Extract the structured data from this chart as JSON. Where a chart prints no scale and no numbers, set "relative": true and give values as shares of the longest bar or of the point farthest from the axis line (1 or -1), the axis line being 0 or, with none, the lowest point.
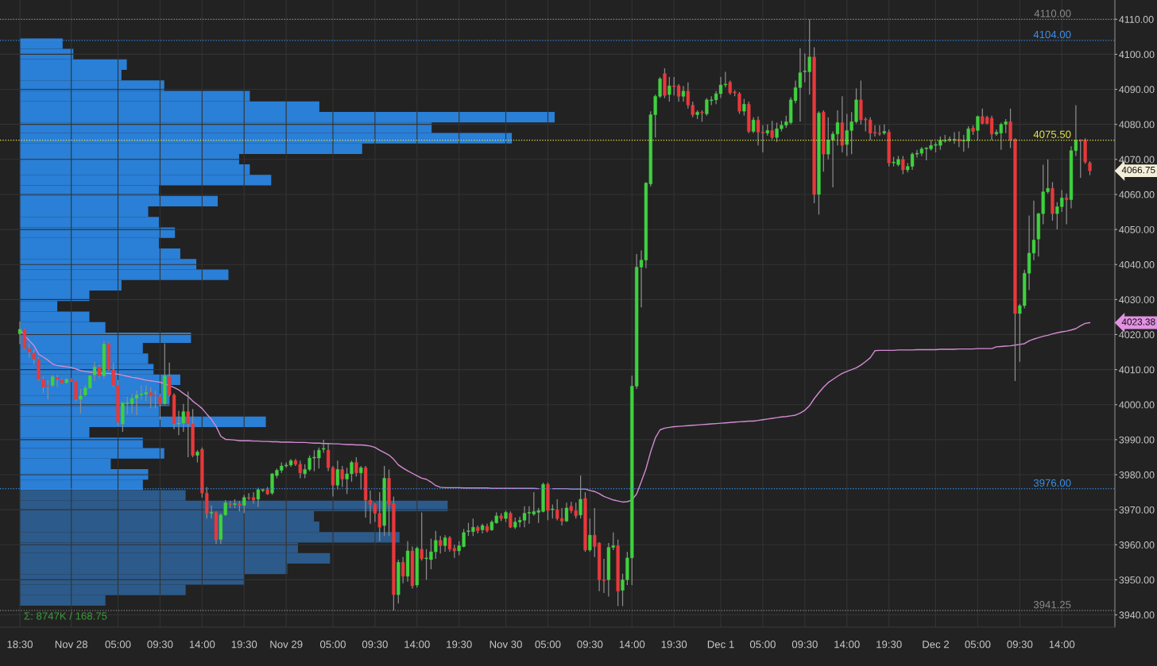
{
  "chart_data": [
    {
      "type": "candlestick",
      "categories": [
        "18:30",
        null,
        null,
        null,
        null,
        null,
        null,
        null,
        null,
        null,
        null,
        "Nov 28",
        null,
        null,
        null,
        null,
        null,
        null,
        null,
        null,
        null,
        "05:00",
        null,
        null,
        null,
        null,
        null,
        null,
        null,
        null,
        "09:30",
        null,
        null,
        null,
        null,
        null,
        null,
        null,
        null,
        "14:00",
        null,
        null,
        null,
        null,
        null,
        null,
        null,
        null,
        "19:30",
        null,
        null,
        null,
        null,
        null,
        null,
        null,
        null,
        "Nov 29",
        null,
        null,
        null,
        null,
        null,
        null,
        null,
        null,
        null,
        "05:00",
        null,
        null,
        null,
        null,
        null,
        null,
        null,
        null,
        "09:30",
        null,
        null,
        null,
        null,
        null,
        null,
        null,
        null,
        "14:00",
        null,
        null,
        null,
        null,
        null,
        null,
        null,
        null,
        "19:30",
        null,
        null,
        null,
        null,
        null,
        null,
        null,
        null,
        null,
        "Nov 30",
        null,
        null,
        null,
        null,
        null,
        null,
        null,
        null,
        "05:00",
        null,
        null,
        null,
        null,
        null,
        null,
        null,
        null,
        "09:30",
        null,
        null,
        null,
        null,
        null,
        null,
        null,
        null,
        "14:00",
        null,
        null,
        null,
        null,
        null,
        null,
        null,
        null,
        "19:30",
        null,
        null,
        null,
        null,
        null,
        null,
        null,
        null,
        null,
        "Dec 1",
        null,
        null,
        null,
        null,
        null,
        null,
        null,
        null,
        "05:00",
        null,
        null,
        null,
        null,
        null,
        null,
        null,
        null,
        "09:30",
        null,
        null,
        null,
        null,
        null,
        null,
        null,
        null,
        "14:00",
        null,
        null,
        null,
        null,
        null,
        null,
        null,
        null,
        "19:30",
        null,
        null,
        null,
        null,
        null,
        null,
        null,
        null,
        null,
        "Dec 2",
        null,
        null,
        null,
        null,
        null,
        null,
        null,
        null,
        "05:00",
        null,
        null,
        null,
        null,
        null,
        null,
        null,
        null,
        "09:30",
        null,
        null,
        null,
        null,
        null,
        null,
        null,
        null,
        "14:00",
        null,
        null,
        null,
        null,
        null,
        null
      ],
      "ohlc": [
        [
          4020.25,
          4023.75,
          4017.25,
          4021.5
        ],
        [
          4021.5,
          4021.75,
          4015.75,
          4016
        ],
        [
          4016,
          4017.5,
          4013.5,
          4015
        ],
        [
          4014.75,
          4015.75,
          4011.5,
          4013
        ],
        [
          4013,
          4013.5,
          4006.75,
          4007.25
        ],
        [
          4007.25,
          4008,
          4003.25,
          4005
        ],
        [
          4005.5,
          4007,
          4001.5,
          4005.25
        ],
        [
          4005.5,
          4008.5,
          4005,
          4008
        ],
        [
          4007.75,
          4008.5,
          4005,
          4007.25
        ],
        [
          4007,
          4007.5,
          4006,
          4006.25
        ],
        [
          4006.25,
          4007.5,
          4006,
          4007.25
        ],
        [
          4007.25,
          4007.5,
          4006.5,
          4006.75
        ],
        [
          4006.75,
          4007,
          4001,
          4001.5
        ],
        [
          4001.5,
          4004.5,
          3997.5,
          4002.5
        ],
        [
          4002.75,
          4005.5,
          4002.25,
          4004.75
        ],
        [
          4004.75,
          4008.5,
          4004.5,
          4008.25
        ],
        [
          4008.5,
          4012.25,
          4006.75,
          4010.75
        ],
        [
          4010.75,
          4011.5,
          4007.5,
          4008.25
        ],
        [
          4008.25,
          4018.25,
          4007.5,
          4017.25
        ],
        [
          4017.5,
          4018,
          4009.75,
          4010
        ],
        [
          4010,
          4012,
          4005,
          4005.5
        ],
        [
          4005.5,
          4007,
          3993.75,
          3995
        ],
        [
          3994.5,
          4000.75,
          3992.25,
          4000.5
        ],
        [
          4000.25,
          4002.25,
          3997.25,
          4000.5
        ],
        [
          4000.25,
          4003,
          3997.5,
          4001.75
        ],
        [
          4001.75,
          4004,
          3997,
          4002.75
        ],
        [
          4002.75,
          4005.5,
          4001.5,
          4003
        ],
        [
          4003,
          4005.5,
          4001,
          4003.5
        ],
        [
          4003.5,
          4005,
          3999,
          4002.5
        ],
        [
          4002.75,
          4004,
          3999,
          4002.5
        ],
        [
          4002.25,
          4003,
          3995.75,
          4000.25
        ],
        [
          4000.25,
          4017.5,
          4000,
          4008.25
        ],
        [
          4008,
          4012,
          4002.25,
          4002.75
        ],
        [
          4002.75,
          4003.25,
          3993,
          3994.5
        ],
        [
          3994.5,
          3998.25,
          3991.25,
          3994.75
        ],
        [
          3994.75,
          4000.25,
          3992.25,
          3998
        ],
        [
          3998,
          4003.75,
          3985,
          3994.5
        ],
        [
          3994.5,
          3998.75,
          3985,
          3985.5
        ],
        [
          3985.5,
          3987,
          3983.5,
          3986.5
        ],
        [
          3987.25,
          3987.75,
          3973.5,
          3974.75
        ],
        [
          3974.75,
          3976.5,
          3967.5,
          3969
        ],
        [
          3969,
          3971.25,
          3967.5,
          3969.25
        ],
        [
          3969.25,
          3969.5,
          3960.25,
          3961.5
        ],
        [
          3961.5,
          3969,
          3960.25,
          3968.5
        ],
        [
          3968.5,
          3972.75,
          3968.25,
          3972
        ],
        [
          3971.75,
          3972.5,
          3970.5,
          3971.5
        ],
        [
          3971.5,
          3973,
          3970.5,
          3971.75
        ],
        [
          3971.75,
          3972.5,
          3969.5,
          3971.25
        ],
        [
          3971.25,
          3974.25,
          3969,
          3973.5
        ],
        [
          3973.5,
          3974.75,
          3972.75,
          3973.25
        ],
        [
          3973.5,
          3975,
          3971.75,
          3972.75
        ],
        [
          3973,
          3976.25,
          3970.75,
          3975.75
        ],
        [
          3975.5,
          3976,
          3975,
          3975.75
        ],
        [
          3975.75,
          3976.5,
          3974.25,
          3974.5
        ],
        [
          3974.75,
          3980.5,
          3974.25,
          3980.25
        ],
        [
          3979.75,
          3981.75,
          3979,
          3981.25
        ],
        [
          3981.25,
          3983.5,
          3980.5,
          3982.5
        ],
        [
          3982.5,
          3983.5,
          3982,
          3982.75
        ],
        [
          3982.75,
          3984.5,
          3982.25,
          3984
        ],
        [
          3984,
          3984.5,
          3982.5,
          3983
        ],
        [
          3983,
          3984,
          3979,
          3980.5
        ],
        [
          3980.25,
          3983,
          3979,
          3981.5
        ],
        [
          3981.5,
          3985.5,
          3981,
          3984.75
        ],
        [
          3984.75,
          3987,
          3981,
          3985
        ],
        [
          3984.75,
          3987.75,
          3981.75,
          3987
        ],
        [
          3987.25,
          3990,
          3986.25,
          3987.5
        ],
        [
          3987,
          3988.75,
          3981,
          3982
        ],
        [
          3982,
          3982.5,
          3973.75,
          3977
        ],
        [
          3977,
          3984,
          3975.75,
          3981.5
        ],
        [
          3981.5,
          3982.5,
          3976.5,
          3978.75
        ],
        [
          3978.75,
          3982,
          3974.5,
          3980.25
        ],
        [
          3980.25,
          3984,
          3978,
          3983.5
        ],
        [
          3983.5,
          3985,
          3979.5,
          3980.5
        ],
        [
          3980.5,
          3982.5,
          3975.75,
          3982
        ],
        [
          3982,
          3982.5,
          3967.75,
          3972.75
        ],
        [
          3972.75,
          3975.5,
          3966,
          3971.5
        ],
        [
          3971.5,
          3972,
          3966.5,
          3969
        ],
        [
          3969,
          3975,
          3961,
          3965
        ],
        [
          3965.5,
          3982.5,
          3962.5,
          3979
        ],
        [
          3979,
          3981.5,
          3962.5,
          3971.5
        ],
        [
          3971.75,
          3973.75,
          3941.25,
          3945.75
        ],
        [
          3945.75,
          3955.75,
          3943.25,
          3955
        ],
        [
          3955,
          3956.5,
          3949,
          3951
        ],
        [
          3951,
          3961,
          3949.5,
          3958.25
        ],
        [
          3958.25,
          3959.5,
          3947.5,
          3948.25
        ],
        [
          3948.5,
          3959.5,
          3947.75,
          3959
        ],
        [
          3958.75,
          3969.25,
          3955.5,
          3956
        ],
        [
          3956,
          3958.75,
          3950,
          3956.25
        ],
        [
          3955.75,
          3961.75,
          3953,
          3958
        ],
        [
          3958,
          3964,
          3956,
          3961.25
        ],
        [
          3961.25,
          3962.5,
          3957.5,
          3959.75
        ],
        [
          3959.75,
          3962.75,
          3958,
          3962
        ],
        [
          3962,
          3962.5,
          3958,
          3958.75
        ],
        [
          3959,
          3960,
          3956.25,
          3958.25
        ],
        [
          3958.25,
          3961,
          3957,
          3959.75
        ],
        [
          3959.5,
          3964.5,
          3959.25,
          3963.5
        ],
        [
          3963.75,
          3966.25,
          3962.5,
          3964
        ],
        [
          3963.75,
          3967.5,
          3962.5,
          3965
        ],
        [
          3965,
          3965.5,
          3963.25,
          3964
        ],
        [
          3964.25,
          3966,
          3963.25,
          3965.5
        ],
        [
          3965.25,
          3966,
          3963.5,
          3964
        ],
        [
          3964.25,
          3967,
          3964,
          3966.5
        ],
        [
          3966.25,
          3969.25,
          3966,
          3968.25
        ],
        [
          3968.25,
          3969,
          3966.75,
          3967.5
        ],
        [
          3967.5,
          3969.75,
          3966.5,
          3969.25
        ],
        [
          3969,
          3969.5,
          3964.75,
          3965
        ],
        [
          3965,
          3967.75,
          3964.5,
          3966.5
        ],
        [
          3966.5,
          3968,
          3965,
          3967
        ],
        [
          3967,
          3971,
          3965,
          3969
        ],
        [
          3969,
          3971,
          3966,
          3969.25
        ],
        [
          3968.75,
          3975,
          3968.25,
          3969.5
        ],
        [
          3969.25,
          3970.5,
          3966.25,
          3969.75
        ],
        [
          3969.5,
          3977.75,
          3969.25,
          3977.25
        ],
        [
          3977.25,
          3977.75,
          3967,
          3969.75
        ],
        [
          3970,
          3971.5,
          3967.5,
          3970.25
        ],
        [
          3970,
          3973,
          3967,
          3967.5
        ],
        [
          3967.5,
          3970.5,
          3965.5,
          3966.75
        ],
        [
          3966.75,
          3972,
          3966.5,
          3970.5
        ],
        [
          3971,
          3972.25,
          3969,
          3969.75
        ],
        [
          3969.75,
          3972,
          3967.5,
          3968.25
        ],
        [
          3968.5,
          3979.75,
          3967.5,
          3973
        ],
        [
          3973.25,
          3975,
          3958,
          3958.5
        ],
        [
          3958.5,
          3967.5,
          3958,
          3962.75
        ],
        [
          3962.75,
          3970.5,
          3956.5,
          3959.5
        ],
        [
          3960.5,
          3960.75,
          3946.75,
          3950
        ],
        [
          3950,
          3956,
          3946.25,
          3949.75
        ],
        [
          3950,
          3960.5,
          3945.25,
          3959.25
        ],
        [
          3959.25,
          3963.5,
          3958.5,
          3959.75
        ],
        [
          3959.75,
          3961.5,
          3942.5,
          3946.75
        ],
        [
          3947,
          3951.75,
          3942.5,
          3950
        ],
        [
          3950,
          3958,
          3948.5,
          3956.25
        ],
        [
          3956.25,
          4008.25,
          3948.5,
          4005.25
        ],
        [
          4005.25,
          4043,
          4004.5,
          4039.25
        ],
        [
          4039.25,
          4044,
          4027.75,
          4041.25
        ],
        [
          4041.25,
          4063.5,
          4039,
          4063.25
        ],
        [
          4063,
          4083.75,
          4062.25,
          4082.75
        ],
        [
          4082.75,
          4088.5,
          4076.25,
          4088
        ],
        [
          4088,
          4093.5,
          4087.5,
          4093
        ],
        [
          4094.5,
          4096,
          4087.5,
          4088.25
        ],
        [
          4088.5,
          4093.5,
          4086.5,
          4091
        ],
        [
          4091,
          4093.5,
          4088.25,
          4090.75
        ],
        [
          4091,
          4091.5,
          4086.5,
          4088
        ],
        [
          4088,
          4091,
          4086.5,
          4089.5
        ],
        [
          4089.5,
          4092,
          4084.5,
          4085.5
        ],
        [
          4085.5,
          4086.5,
          4082,
          4082.75
        ],
        [
          4082.75,
          4084,
          4081.5,
          4083.5
        ],
        [
          4083.5,
          4084,
          4080.75,
          4083.25
        ],
        [
          4083,
          4087.5,
          4082.5,
          4087
        ],
        [
          4086.75,
          4088,
          4085.5,
          4087
        ],
        [
          4087,
          4089.5,
          4085.75,
          4088.75
        ],
        [
          4088.75,
          4093.5,
          4087.5,
          4091.25
        ],
        [
          4091.25,
          4095,
          4090.5,
          4091.5
        ],
        [
          4092,
          4092.5,
          4088.5,
          4089
        ],
        [
          4089.25,
          4089.75,
          4088,
          4089
        ],
        [
          4088.75,
          4089.25,
          4083,
          4083.75
        ],
        [
          4083.75,
          4087.25,
          4082.5,
          4085.75
        ],
        [
          4085.75,
          4086.5,
          4077.5,
          4078
        ],
        [
          4078,
          4082,
          4077.5,
          4081.25
        ],
        [
          4081.25,
          4082.25,
          4074,
          4077.75
        ],
        [
          4077.75,
          4079.75,
          4072,
          4077.5
        ],
        [
          4077.5,
          4080,
          4076.75,
          4078.25
        ],
        [
          4078.25,
          4081,
          4075.75,
          4076.25
        ],
        [
          4076.25,
          4080.5,
          4075,
          4078.75
        ],
        [
          4078.75,
          4081,
          4078,
          4079.75
        ],
        [
          4079.75,
          4082.5,
          4079,
          4080.75
        ],
        [
          4080.5,
          4087.75,
          4080,
          4087
        ],
        [
          4086.75,
          4092.5,
          4086,
          4090.5
        ],
        [
          4090.5,
          4101.75,
          4080.75,
          4094.75
        ],
        [
          4095,
          4100.25,
          4092,
          4095.25
        ],
        [
          4095,
          4110,
          4088.5,
          4099.25
        ],
        [
          4099.25,
          4102,
          4057.5,
          4060
        ],
        [
          4060,
          4083.75,
          4054.25,
          4083.25
        ],
        [
          4083.5,
          4084,
          4066.5,
          4071.5
        ],
        [
          4071.5,
          4082,
          4070,
          4075.5
        ],
        [
          4075.5,
          4078,
          4062,
          4077.25
        ],
        [
          4077.25,
          4084,
          4074,
          4080.5
        ],
        [
          4080.5,
          4088,
          4072,
          4074
        ],
        [
          4074.25,
          4083,
          4071,
          4078.25
        ],
        [
          4078.25,
          4083.5,
          4071.5,
          4080.75
        ],
        [
          4080.75,
          4090.25,
          4080.25,
          4087
        ],
        [
          4087,
          4092.5,
          4080,
          4081.25
        ],
        [
          4081.5,
          4082,
          4078,
          4081.25
        ],
        [
          4081.25,
          4082,
          4075.5,
          4077.5
        ],
        [
          4077.75,
          4079.75,
          4076.5,
          4077.5
        ],
        [
          4077.5,
          4079.75,
          4076.75,
          4077.25
        ],
        [
          4077.5,
          4080,
          4077,
          4078
        ],
        [
          4077.75,
          4078.5,
          4068,
          4069
        ],
        [
          4069,
          4070.75,
          4068,
          4069.25
        ],
        [
          4068.5,
          4071,
          4068,
          4070
        ],
        [
          4070,
          4071,
          4065.75,
          4067
        ],
        [
          4067,
          4069,
          4066.25,
          4068
        ],
        [
          4068,
          4072,
          4067,
          4071.5
        ],
        [
          4071.5,
          4072.75,
          4070.5,
          4071.75
        ],
        [
          4071.75,
          4073.5,
          4071,
          4073
        ],
        [
          4073,
          4073.5,
          4069.75,
          4073.25
        ],
        [
          4073,
          4075.5,
          4072.5,
          4074
        ],
        [
          4074,
          4075,
          4072,
          4074.25
        ],
        [
          4074,
          4076.5,
          4072.75,
          4075.5
        ],
        [
          4075.25,
          4077,
          4074.75,
          4075.5
        ],
        [
          4075.5,
          4076.5,
          4075,
          4075.75
        ],
        [
          4075.5,
          4077.75,
          4074.5,
          4075.75
        ],
        [
          4075.75,
          4078,
          4073.5,
          4075.25
        ],
        [
          4075.25,
          4077,
          4072.25,
          4075.5
        ],
        [
          4075.25,
          4079.5,
          4073.25,
          4078.75
        ],
        [
          4079,
          4079.75,
          4077,
          4078
        ],
        [
          4078.25,
          4082.5,
          4075.5,
          4082.25
        ],
        [
          4082.25,
          4084.5,
          4080,
          4080.25
        ],
        [
          4082,
          4082.5,
          4080,
          4080.25
        ],
        [
          4081.75,
          4082.5,
          4075.5,
          4077.25
        ],
        [
          4077.25,
          4078.5,
          4076.75,
          4077.75
        ],
        [
          4077.5,
          4080.5,
          4072.75,
          4080
        ],
        [
          4080,
          4081.5,
          4077.5,
          4080.75
        ],
        [
          4080.75,
          4084.5,
          4073.25,
          4075.5
        ],
        [
          4075.75,
          4076,
          4006.75,
          4026
        ],
        [
          4026,
          4028.75,
          4012.25,
          4028.25
        ],
        [
          4028.25,
          4038.5,
          4027.5,
          4037.5
        ],
        [
          4037.5,
          4054,
          4032.75,
          4043.25
        ],
        [
          4043.25,
          4058.25,
          4041.25,
          4047
        ],
        [
          4047.25,
          4054.75,
          4042.25,
          4054.5
        ],
        [
          4054.5,
          4068.5,
          4051.5,
          4060.75
        ],
        [
          4060.75,
          4070,
          4060.25,
          4061.75
        ],
        [
          4061.75,
          4063.5,
          4052.5,
          4054.5
        ],
        [
          4054.5,
          4057.75,
          4050,
          4056.5
        ],
        [
          4056.5,
          4061.25,
          4055,
          4059
        ],
        [
          4059,
          4060.25,
          4051.5,
          4058.5
        ],
        [
          4058.5,
          4073.75,
          4056,
          4072.5
        ],
        [
          4072.5,
          4085.5,
          4071,
          4075.5
        ],
        [
          4075.5,
          4075.75,
          4064.75,
          4075.25
        ],
        [
          4075.5,
          4076,
          4068.75,
          4069.25
        ],
        [
          4069,
          4069.5,
          4065.5,
          4066.75
        ]
      ],
      "series": [
        {
          "type": "line",
          "color": "#d38cd3",
          "values": [
            4021.4,
            4019.8,
            4018.3,
            4016.9,
            4014.4,
            4013.6,
            4012.7,
            4011.6,
            4011.2,
            4011.0,
            4010.8,
            4010.6,
            4010.2,
            4009.7,
            4009.5,
            4009.3,
            4009.1,
            4009.0,
            4008.9,
            4008.9,
            4008.8,
            4008.7,
            4008.4,
            4008.1,
            4007.8,
            4007.6,
            4007.3,
            4007.0,
            4006.8,
            4006.6,
            4006.4,
            4006.0,
            4005.4,
            4004.9,
            4004.2,
            4003.2,
            4002.3,
            4001.0,
            4000.0,
            3998.9,
            3997.3,
            3995.8,
            3993.8,
            3991.0,
            3990.1,
            3990.0,
            3989.9,
            3989.7,
            3989.7,
            3989.7,
            3989.6,
            3989.6,
            3989.5,
            3989.5,
            3989.4,
            3989.4,
            3989.3,
            3989.3,
            3989.3,
            3989.2,
            3989.2,
            3989.2,
            3989.1,
            3989.0,
            3989.0,
            3988.9,
            3988.9,
            3988.8,
            3988.8,
            3988.7,
            3988.6,
            3988.6,
            3988.5,
            3988.5,
            3988.4,
            3988.2,
            3987.8,
            3987.0,
            3986.3,
            3985.6,
            3984.4,
            3982.8,
            3981.9,
            3981.1,
            3980.4,
            3979.7,
            3979.0,
            3978.7,
            3977.9,
            3976.9,
            3976.4,
            3976.3,
            3976.3,
            3976.3,
            3976.3,
            3976.2,
            3976.2,
            3976.2,
            3976.2,
            3976.2,
            3976.2,
            3976.1,
            3976.1,
            3976.1,
            3976.1,
            3976.1,
            3976.1,
            3976.1,
            3976.1,
            3976.1,
            3976.1,
            3976.0,
            null,
            null,
            3976.0,
            3976.0,
            3976.0,
            3976.0,
            3975.9,
            3975.9,
            3975.9,
            3975.9,
            3975.5,
            3975.2,
            3974.6,
            3973.8,
            3973.3,
            3972.8,
            3972.5,
            3972.2,
            3972.3,
            3972.8,
            3974.5,
            3978.0,
            3981.7,
            3986.5,
            3990.5,
            3992.8,
            3993.3,
            3993.5,
            3993.7,
            3993.8,
            3993.9,
            3994.0,
            3994.1,
            3994.2,
            3994.3,
            3994.4,
            3994.5,
            3994.6,
            3994.7,
            3994.8,
            3994.9,
            3995.0,
            3995.1,
            3995.2,
            3995.3,
            3995.3,
            3995.5,
            3995.7,
            3995.9,
            3996.1,
            3996.3,
            3996.5,
            3996.6,
            3996.8,
            3997.0,
            3997.6,
            3998.4,
            3999.7,
            4001.7,
            4003.4,
            4005.0,
            4006.3,
            4007.2,
            4008.1,
            4008.9,
            4009.5,
            4010.0,
            4010.5,
            4011.3,
            4012.3,
            4013.4,
            4015.4,
            4015.5,
            4015.5,
            4015.5,
            4015.5,
            4015.6,
            4015.6,
            4015.6,
            4015.6,
            4015.7,
            4015.7,
            4015.7,
            4015.7,
            4015.7,
            4015.8,
            4015.8,
            4015.8,
            4015.8,
            4015.9,
            4015.9,
            4015.9,
            4015.9,
            4016.0,
            4016.0,
            4016.0,
            4016.0,
            4016.5,
            4016.6,
            4016.7,
            4016.8,
            4017.0,
            4017.2,
            4017.4,
            4018.2,
            4018.7,
            4019.1,
            4019.5,
            4019.8,
            4020.2,
            4020.5,
            4020.8,
            4021.0,
            4021.3,
            4021.7,
            4022.5,
            4023.2,
            4023.4
          ]
        }
      ],
      "ylim": [
        3936.5,
        4115.5
      ],
      "yticks": [
        {
          "value": 3940,
          "label": "3940.00"
        },
        {
          "value": 3950,
          "label": "3950.00"
        },
        {
          "value": 3960,
          "label": "3960.00"
        },
        {
          "value": 3970,
          "label": "3970.00"
        },
        {
          "value": 3980,
          "label": "3980.00"
        },
        {
          "value": 3990,
          "label": "3990.00"
        },
        {
          "value": 4000,
          "label": "4000.00"
        },
        {
          "value": 4010,
          "label": "4010.00"
        },
        {
          "value": 4020,
          "label": "4020.00"
        },
        {
          "value": 4030,
          "label": "4030.00"
        },
        {
          "value": 4040,
          "label": "4040.00"
        },
        {
          "value": 4050,
          "label": "4050.00"
        },
        {
          "value": 4060,
          "label": "4060.00"
        },
        {
          "value": 4070,
          "label": "4070.00"
        },
        {
          "value": 4080,
          "label": "4080.00"
        },
        {
          "value": 4090,
          "label": "4090.00"
        },
        {
          "value": 4100,
          "label": "4100.00"
        },
        {
          "value": 4110,
          "label": "4110.00"
        }
      ],
      "grid": true,
      "ref_lines": [
        {
          "axis": "y",
          "value": 4110,
          "label": "4110.00",
          "color": "#8a8a8a",
          "line_style": "dotted"
        },
        {
          "axis": "y",
          "value": 4104,
          "label": "4104.00",
          "color": "#3b8ee6",
          "line_style": "dotted"
        },
        {
          "axis": "y",
          "value": 4075.5,
          "label": "4075.50",
          "color": "#e6e64a",
          "line_style": "dotted"
        },
        {
          "axis": "y",
          "value": 3976,
          "label": "3976.00",
          "color": "#3b8ee6",
          "line_style": "dotted"
        },
        {
          "axis": "y",
          "value": 3941.25,
          "label": "3941.25",
          "color": "#8a8a8a",
          "line_style": "dotted"
        }
      ],
      "annotations": [
        "4066.75",
        "4023.38"
      ]
    },
    {
      "type": "bar",
      "orientation": "horizontal",
      "relative": true,
      "categories": [
        null,
        null,
        null,
        null,
        null,
        null,
        null,
        null,
        null,
        null,
        null,
        null,
        null,
        null,
        null,
        null,
        null,
        null,
        null,
        null,
        null,
        null,
        null,
        null,
        null,
        null,
        null,
        null,
        null,
        null,
        null,
        null,
        null,
        null,
        null,
        null,
        null,
        null,
        null,
        null,
        null,
        null,
        null,
        null,
        null,
        null,
        null,
        null,
        null,
        null,
        null,
        null,
        null,
        null
      ],
      "values": [
        0.08,
        0.1,
        0.2,
        0.19,
        0.27,
        0.43,
        0.56,
        1,
        0.77,
        0.92,
        0.64,
        0.41,
        0.43,
        0.47,
        0.26,
        0.37,
        0.24,
        0.26,
        0.29,
        0.26,
        0.3,
        0.33,
        0.39,
        0.19,
        0.13,
        0.07,
        0.13,
        0.16,
        0.32,
        0.23,
        0.24,
        0.25,
        0.3,
        0.28,
        0.28,
        0.26,
        0.46,
        0.13,
        0.23,
        0.27,
        0.17,
        0.24,
        0.23,
        0.31,
        0.8,
        0.55,
        0.56,
        0.71,
        0.52,
        0.58,
        0.5,
        0.42,
        0.31,
        0.16
      ],
      "colors": [
        "#2a7fd6",
        "#2a7fd6",
        "#2a7fd6",
        "#2a7fd6",
        "#2a7fd6",
        "#2a7fd6",
        "#2a7fd6",
        "#2a7fd6",
        "#2a7fd6",
        "#2a7fd6",
        "#2a7fd6",
        "#2a7fd6",
        "#2a7fd6",
        "#2a7fd6",
        "#2a7fd6",
        "#2a7fd6",
        "#2a7fd6",
        "#2a7fd6",
        "#2a7fd6",
        "#2a7fd6",
        "#2a7fd6",
        "#2a7fd6",
        "#2a7fd6",
        "#2a7fd6",
        "#2a7fd6",
        "#2a7fd6",
        "#2a7fd6",
        "#2a7fd6",
        "#2a7fd6",
        "#2a7fd6",
        "#2a7fd6",
        "#2a7fd6",
        "#2a7fd6",
        "#2a7fd6",
        "#2a7fd6",
        "#2a7fd6",
        "#2a7fd6",
        "#2a7fd6",
        "#2a7fd6",
        "#2a7fd6",
        "#2a7fd6",
        "#2a7fd6",
        "#2a7fd6",
        "#2c5a8a",
        "#2c5a8a",
        "#2c5a8a",
        "#2c5a8a",
        "#2c5a8a",
        "#2c5a8a",
        "#2c5a8a",
        "#2c5a8a",
        "#2c5a8a",
        "#2c5a8a",
        "#2c5a8a"
      ],
      "annotations": [
        "Σ: 8747K / 168.75"
      ]
    }
  ]
}
